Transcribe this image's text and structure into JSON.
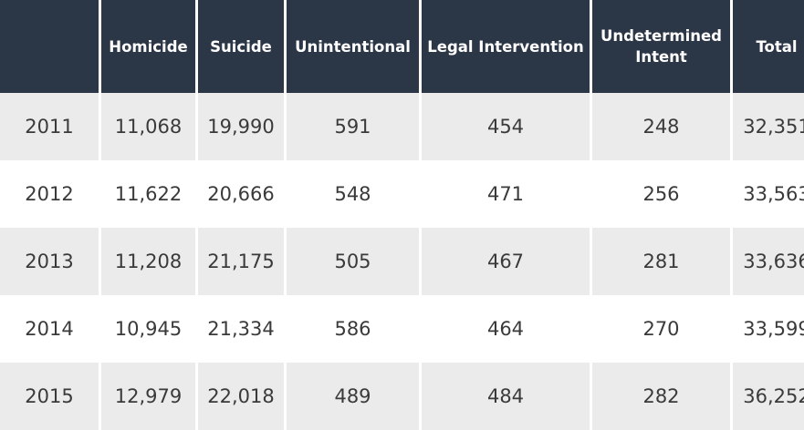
{
  "chart_data": {
    "type": "table",
    "columns": [
      "",
      "Homicide",
      "Suicide",
      "Unintentional",
      "Legal Intervention",
      "Undetermined Intent",
      "Total"
    ],
    "rows": [
      [
        "2011",
        "11,068",
        "19,990",
        "591",
        "454",
        "248",
        "32,351"
      ],
      [
        "2012",
        "11,622",
        "20,666",
        "548",
        "471",
        "256",
        "33,563"
      ],
      [
        "2013",
        "11,208",
        "21,175",
        "505",
        "467",
        "281",
        "33,636"
      ],
      [
        "2014",
        "10,945",
        "21,334",
        "586",
        "464",
        "270",
        "33,599"
      ],
      [
        "2015",
        "12,979",
        "22,018",
        "489",
        "484",
        "282",
        "36,252"
      ]
    ],
    "series": [
      {
        "name": "Homicide",
        "values": [
          11068,
          11622,
          11208,
          10945,
          12979
        ]
      },
      {
        "name": "Suicide",
        "values": [
          19990,
          20666,
          21175,
          21334,
          22018
        ]
      },
      {
        "name": "Unintentional",
        "values": [
          591,
          548,
          505,
          586,
          489
        ]
      },
      {
        "name": "Legal Intervention",
        "values": [
          454,
          471,
          467,
          464,
          484
        ]
      },
      {
        "name": "Undetermined Intent",
        "values": [
          248,
          256,
          281,
          270,
          282
        ]
      },
      {
        "name": "Total",
        "values": [
          32351,
          33563,
          33636,
          33599,
          36252
        ]
      }
    ],
    "categories": [
      "2011",
      "2012",
      "2013",
      "2014",
      "2015"
    ],
    "colors": {
      "header_bg": "#2b3646",
      "header_text": "#ffffff",
      "row_alt_bg": "#ebebeb",
      "row_bg": "#ffffff",
      "cell_text": "#3a3a3a"
    }
  }
}
